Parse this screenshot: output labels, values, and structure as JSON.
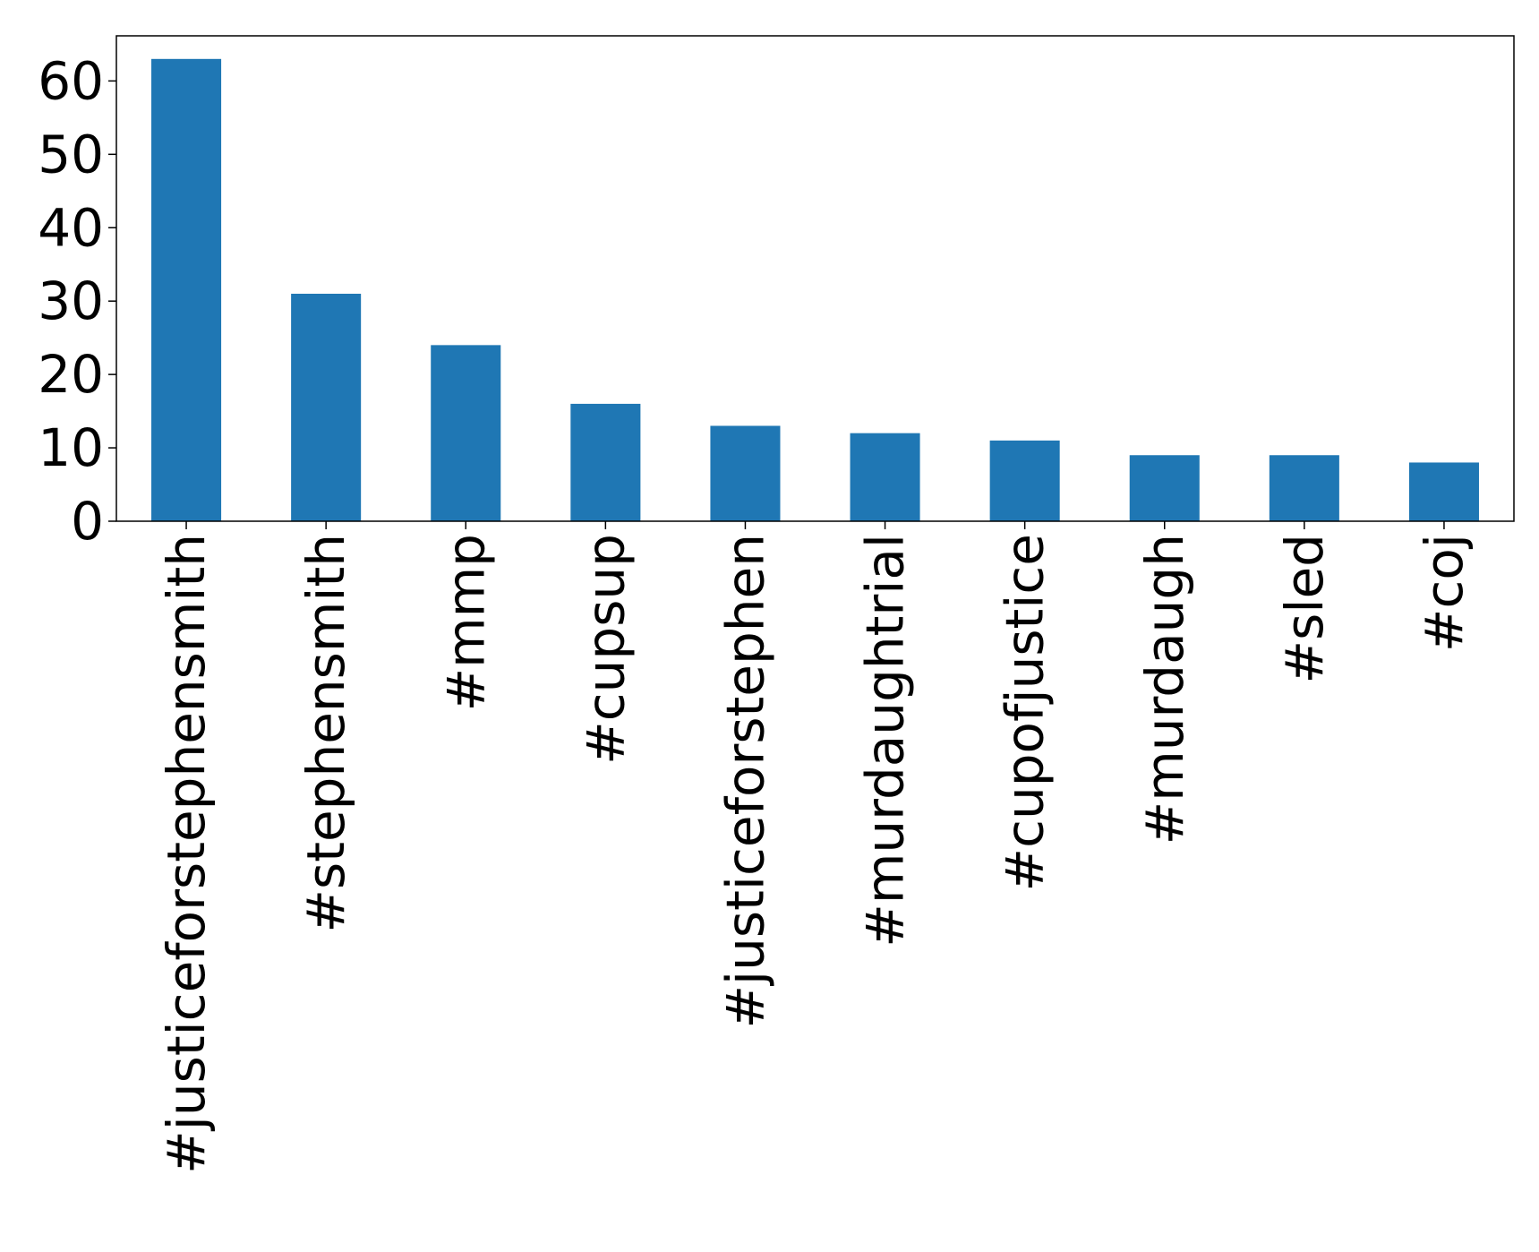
{
  "chart_data": {
    "type": "bar",
    "title": "",
    "xlabel": "",
    "ylabel": "",
    "categories": [
      "#justiceforstephensmith",
      "#stephensmith",
      "#mmp",
      "#cupsup",
      "#justiceforstephen",
      "#murdaughtrial",
      "#cupofjustice",
      "#murdaugh",
      "#sled",
      "#coj"
    ],
    "values": [
      63,
      31,
      24,
      16,
      13,
      12,
      11,
      9,
      9,
      8
    ],
    "ylim": [
      0,
      66.15
    ],
    "yticks": [
      0,
      10,
      20,
      30,
      40,
      50,
      60
    ],
    "ytick_labels": [
      "0",
      "10",
      "20",
      "30",
      "40",
      "50",
      "60"
    ],
    "bar_color": "#1f77b4",
    "grid": false,
    "legend": "none"
  }
}
